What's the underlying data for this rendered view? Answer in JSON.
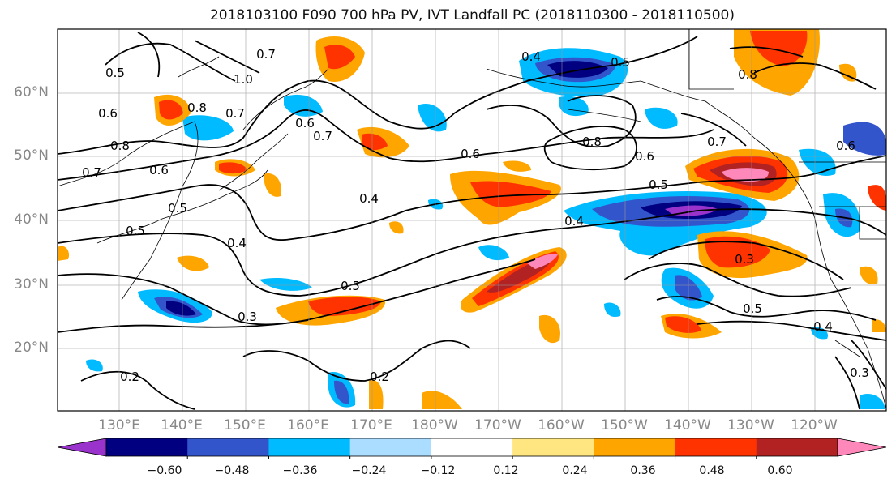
{
  "title": "2018103100 F090 700 hPa PV, IVT Landfall PC (2018110300 - 2018110500)",
  "map": {
    "lat_labels": [
      "60°N",
      "50°N",
      "40°N",
      "30°N",
      "20°N"
    ],
    "lon_labels": [
      "130°E",
      "140°E",
      "150°E",
      "160°E",
      "170°E",
      "180°W",
      "170°W",
      "160°W",
      "150°W",
      "140°W",
      "130°W",
      "120°W"
    ],
    "contour_labels": [
      "0.7",
      "0.5",
      "1.0",
      "0.8",
      "0.6",
      "0.7",
      "0.8",
      "0.7",
      "0.6",
      "0.7",
      "0.6",
      "0.5",
      "0.5",
      "0.4",
      "0.3",
      "0.5",
      "0.4",
      "0.5",
      "0.6",
      "0.4",
      "0.8",
      "0.6",
      "0.5",
      "0.4",
      "0.8",
      "0.7",
      "0.3",
      "0.5",
      "0.4",
      "0.2",
      "0.2",
      "0.3",
      "0.6"
    ]
  },
  "colorbar": {
    "colors": [
      "#9933cc",
      "#000080",
      "#3355cc",
      "#00bbff",
      "#aaddff",
      "#ffffff",
      "#ffe680",
      "#ffa500",
      "#ff3300",
      "#b22222",
      "#ff88bb"
    ],
    "tick_labels": [
      "−0.60",
      "−0.48",
      "−0.36",
      "−0.24",
      "−0.12",
      "0.12",
      "0.24",
      "0.36",
      "0.48",
      "0.60"
    ]
  }
}
